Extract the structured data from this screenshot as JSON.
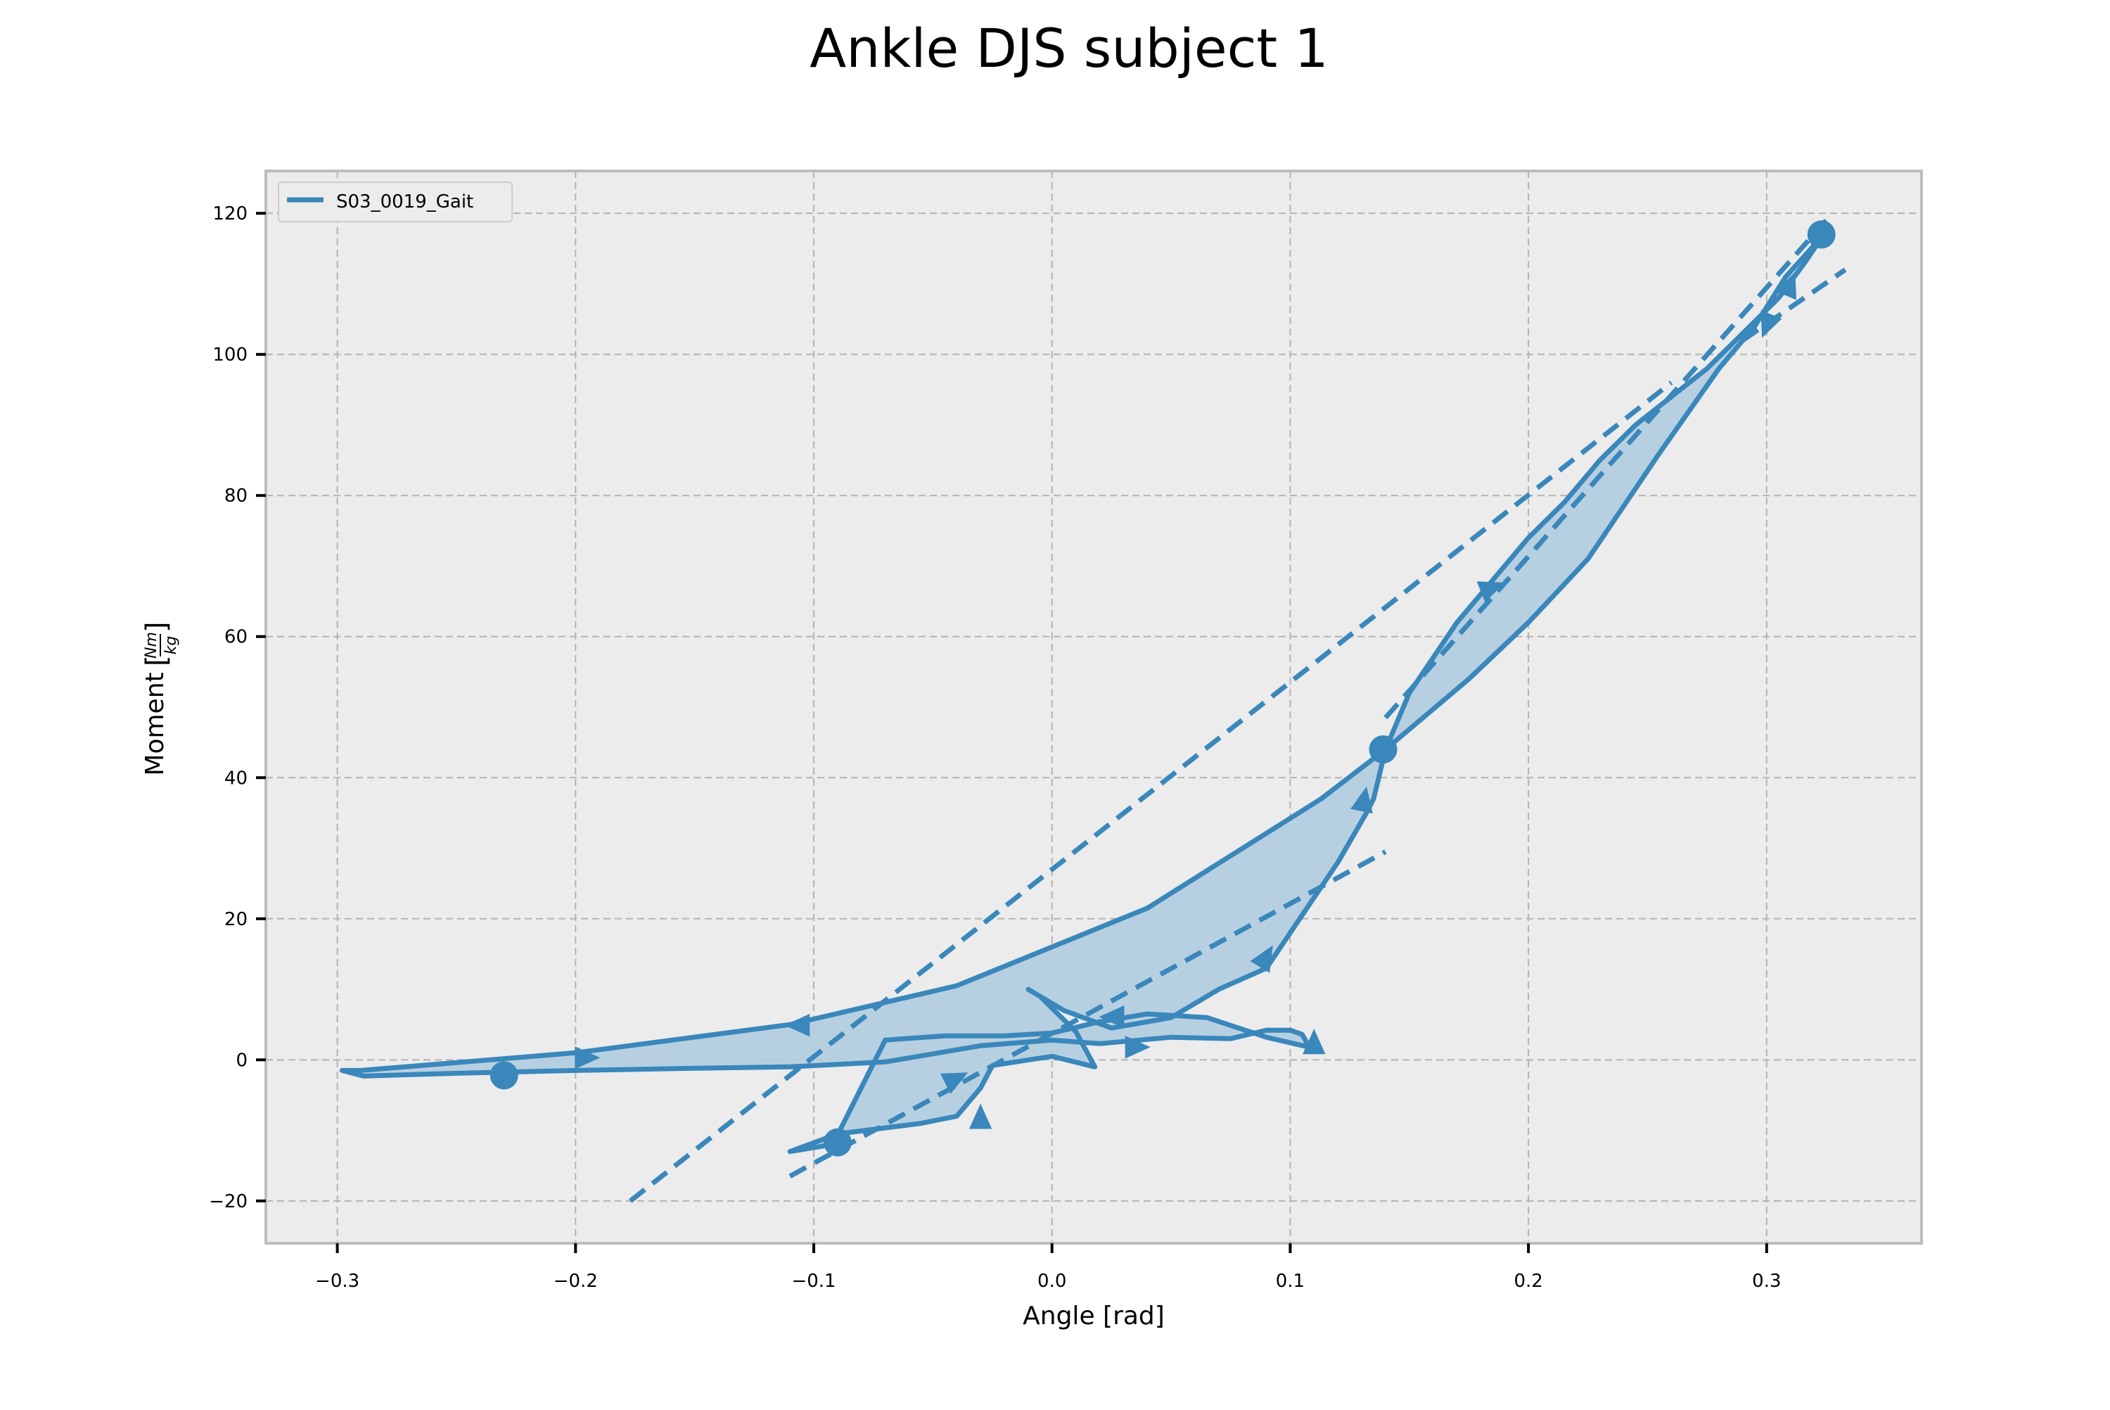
{
  "chart_data": {
    "type": "line",
    "title": "Ankle DJS subject 1",
    "xlabel": "Angle [rad]",
    "ylabel": "Moment",
    "ylabel_fraction": {
      "numerator": "Nm",
      "denominator": "kg"
    },
    "xlim": [
      -0.33,
      0.365
    ],
    "ylim": [
      -26,
      126
    ],
    "xticks": [
      -0.3,
      -0.2,
      -0.1,
      0.0,
      0.1,
      0.2,
      0.3
    ],
    "xtick_labels": [
      "−0.3",
      "−0.2",
      "−0.1",
      "0.0",
      "0.1",
      "0.2",
      "0.3"
    ],
    "yticks": [
      -20,
      0,
      20,
      40,
      60,
      80,
      100,
      120
    ],
    "ytick_labels": [
      "−20",
      "0",
      "20",
      "40",
      "60",
      "80",
      "100",
      "120"
    ],
    "grid": true,
    "legend_position": "upper-left",
    "colors": {
      "series": "#3a87bb",
      "fill": "#b4cfe0",
      "background": "#ececec",
      "grid": "#b3b3b3",
      "frame": "#bdbdbd"
    },
    "series": [
      {
        "name": "S03_0019_Gait",
        "x": [
          -0.298,
          -0.289,
          -0.25,
          -0.2,
          -0.15,
          -0.11,
          -0.07,
          -0.03,
          0.0,
          0.02,
          0.05,
          0.075,
          0.09,
          0.1,
          0.105,
          0.108,
          0.09,
          0.065,
          0.04,
          0.02,
          0.0,
          -0.02,
          -0.045,
          -0.07,
          -0.092,
          -0.11,
          -0.09,
          -0.055,
          -0.04,
          -0.03,
          -0.025,
          0.0,
          0.018,
          0.01,
          -0.005,
          -0.01,
          0.005,
          0.025,
          0.05,
          0.07,
          0.09,
          0.1,
          0.12,
          0.132,
          0.135,
          0.14,
          0.15,
          0.17,
          0.185,
          0.2,
          0.215,
          0.23,
          0.245,
          0.26,
          0.275,
          0.29,
          0.305,
          0.316,
          0.324,
          0.308,
          0.295,
          0.28,
          0.255,
          0.225,
          0.2,
          0.175,
          0.14,
          0.113,
          0.04,
          -0.04,
          -0.11,
          -0.2,
          -0.29,
          -0.298
        ],
        "y": [
          -1.5,
          -2.3,
          -1.9,
          -1.5,
          -1.2,
          -1.0,
          -0.3,
          2.0,
          2.8,
          2.3,
          3.2,
          3.0,
          4.2,
          4.2,
          3.6,
          1.8,
          3.2,
          6.0,
          6.5,
          5.4,
          3.8,
          3.4,
          3.4,
          2.8,
          -12.0,
          -13.0,
          -10.5,
          -9.0,
          -8.0,
          -4.0,
          -0.8,
          0.5,
          -1.0,
          4.0,
          9.0,
          10.0,
          7.0,
          4.5,
          6.0,
          10.0,
          13.0,
          18.0,
          28.0,
          35.0,
          37.0,
          44.0,
          52.0,
          62.0,
          68.0,
          74.0,
          79.0,
          85.0,
          90.0,
          94.0,
          98.0,
          103.0,
          108.0,
          113.0,
          117.0,
          111.0,
          104.0,
          98.0,
          86.0,
          71.0,
          62.0,
          54.0,
          44.0,
          37.0,
          21.5,
          10.5,
          5.0,
          1.0,
          -1.5,
          -1.5
        ]
      }
    ],
    "markers": [
      {
        "x": -0.23,
        "y": -2.2
      },
      {
        "x": -0.09,
        "y": -11.7
      },
      {
        "x": 0.139,
        "y": 44.0
      },
      {
        "x": 0.323,
        "y": 117.0
      }
    ],
    "arrows": [
      {
        "x": -0.195,
        "y": 0.3,
        "dx": 1,
        "dy": 0
      },
      {
        "x": -0.107,
        "y": 4.9,
        "dx": -1,
        "dy": 0
      },
      {
        "x": -0.04,
        "y": -2.6,
        "dx": 1,
        "dy": 0.5
      },
      {
        "x": -0.03,
        "y": -8.0,
        "dx": 0,
        "dy": 1
      },
      {
        "x": 0.036,
        "y": 1.8,
        "dx": 1,
        "dy": 0
      },
      {
        "x": 0.025,
        "y": 6.1,
        "dx": -1,
        "dy": 0
      },
      {
        "x": 0.11,
        "y": 2.6,
        "dx": 0,
        "dy": 1
      },
      {
        "x": 0.09,
        "y": 14.7,
        "dx": 0.6,
        "dy": 1
      },
      {
        "x": 0.131,
        "y": 37.0,
        "dx": 0.2,
        "dy": 1
      },
      {
        "x": 0.185,
        "y": 67.0,
        "dx": 1,
        "dy": 0.4
      },
      {
        "x": 0.31,
        "y": 110.0,
        "dx": 0.4,
        "dy": 1
      },
      {
        "x": 0.3,
        "y": 104.0,
        "dx": -0.4,
        "dy": -1
      }
    ],
    "regression_lines": [
      {
        "x": [
          -0.177,
          0.26
        ],
        "y": [
          -20.0,
          96.0
        ]
      },
      {
        "x": [
          -0.11,
          0.14
        ],
        "y": [
          -16.5,
          29.5
        ]
      },
      {
        "x": [
          0.14,
          0.325
        ],
        "y": [
          48.5,
          119.0
        ]
      },
      {
        "x": [
          0.29,
          0.333
        ],
        "y": [
          102.0,
          112.0
        ]
      }
    ]
  }
}
